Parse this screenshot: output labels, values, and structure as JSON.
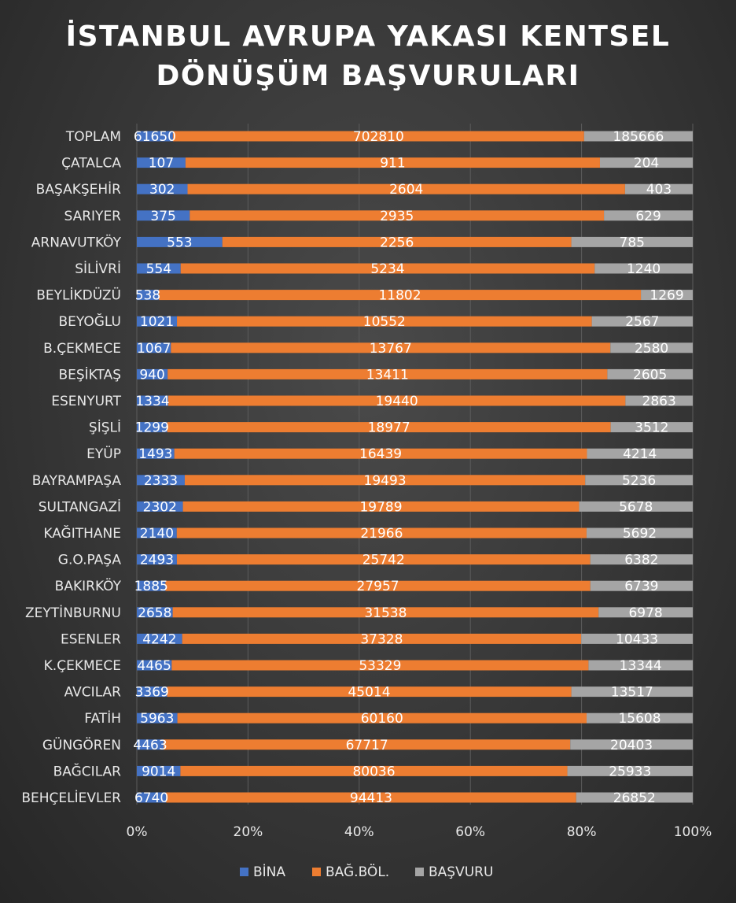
{
  "chart_data": {
    "type": "bar",
    "orientation": "horizontal",
    "stacking": "percent",
    "title": "İSTANBUL AVRUPA YAKASI KENTSEL DÖNÜŞÜM BAŞVURULARI",
    "title_lines": [
      "İSTANBUL AVRUPA YAKASI KENTSEL",
      "DÖNÜŞÜM BAŞVURULARI"
    ],
    "categories": [
      "TOPLAM",
      "ÇATALCA",
      "BAŞAKŞEHİR",
      "SARIYER",
      "ARNAVUTKÖY",
      "SİLİVRİ",
      "BEYLİKDÜZÜ",
      "BEYOĞLU",
      "B.ÇEKMECE",
      "BEŞİKTAŞ",
      "ESENYURT",
      "ŞİŞLİ",
      "EYÜP",
      "BAYRAMPAŞA",
      "SULTANGAZİ",
      "KAĞITHANE",
      "G.O.PAŞA",
      "BAKIRKÖY",
      "ZEYTİNBURNU",
      "ESENLER",
      "K.ÇEKMECE",
      "AVCILAR",
      "FATİH",
      "GÜNGÖREN",
      "BAĞCILAR",
      "BEHÇELİEVLER"
    ],
    "series": [
      {
        "name": "BİNA",
        "color": "#4472c4",
        "values": [
          61650,
          107,
          302,
          375,
          553,
          554,
          538,
          1021,
          1067,
          940,
          1334,
          1299,
          1493,
          2333,
          2302,
          2140,
          2493,
          1885,
          2658,
          4242,
          4465,
          3369,
          5963,
          4463,
          9014,
          6740
        ]
      },
      {
        "name": "BAĞ.BÖL.",
        "color": "#ed7d31",
        "values": [
          702810,
          911,
          2604,
          2935,
          2256,
          5234,
          11802,
          10552,
          13767,
          13411,
          19440,
          18977,
          16439,
          19493,
          19789,
          21966,
          25742,
          27957,
          31538,
          37328,
          53329,
          45014,
          60160,
          67717,
          80036,
          94413
        ]
      },
      {
        "name": "BAŞVURU",
        "color": "#a5a5a5",
        "values": [
          185666,
          204,
          403,
          629,
          785,
          1240,
          1269,
          2567,
          2580,
          2605,
          2863,
          3512,
          4214,
          5236,
          5678,
          5692,
          6382,
          6739,
          6978,
          10433,
          13344,
          13517,
          15608,
          20403,
          25933,
          26852
        ]
      }
    ],
    "x_ticks": [
      "0%",
      "20%",
      "40%",
      "60%",
      "80%",
      "100%"
    ],
    "xlim": [
      0,
      100
    ],
    "grid": true,
    "legend": "bottom"
  }
}
